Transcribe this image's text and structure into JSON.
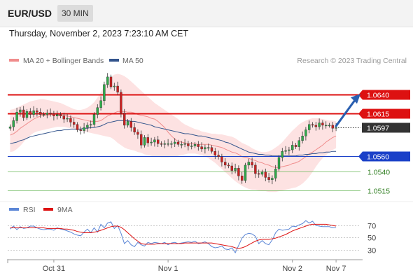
{
  "header": {
    "symbol": "EUR/USD",
    "timeframe": "30 MIN",
    "datetime": "Thursday, November 2, 2023 7:23:10 AM CET"
  },
  "legend": {
    "ma20_bb": "MA 20 + Bollinger Bands",
    "ma50": "MA 50",
    "credit": "Research © 2023 Trading Central",
    "rsi": "RSI",
    "ma9": "9MA"
  },
  "colors": {
    "ma20": "#f08c8c",
    "band_fill": "#fde2e2",
    "ma50": "#33548c",
    "resistance": "#dd1111",
    "support_key": "#1a40c8",
    "support_minor": "#6ab85a",
    "support_text": "#2e7d1f",
    "current": "#333333",
    "candle_up": "#2eab4a",
    "candle_down": "#cc2020",
    "arrow": "#2a5fb0",
    "rsi": "#5b86d6",
    "rsi_ma9": "#dd1111"
  },
  "chart_data": [
    {
      "type": "candlestick",
      "ylim": [
        1.0505,
        1.0672
      ],
      "x_ticks": [
        {
          "label": "Oct 31",
          "i": 13
        },
        {
          "label": "Nov 1",
          "i": 47
        },
        {
          "label": "Nov 2",
          "i": 84
        },
        {
          "label": "Nov 7",
          "i": 97
        }
      ],
      "levels": [
        {
          "value": 1.064,
          "label": "1.0640",
          "kind": "resistance"
        },
        {
          "value": 1.0615,
          "label": "1.0615",
          "kind": "resistance"
        },
        {
          "value": 1.0597,
          "label": "1.0597",
          "kind": "current"
        },
        {
          "value": 1.056,
          "label": "1.0560",
          "kind": "support_key"
        },
        {
          "value": 1.054,
          "label": "1.0540",
          "kind": "support_minor"
        },
        {
          "value": 1.0515,
          "label": "1.0515",
          "kind": "support_minor"
        }
      ],
      "close": [
        1.0598,
        1.0606,
        1.0617,
        1.062,
        1.061,
        1.0618,
        1.0614,
        1.0619,
        1.0617,
        1.0614,
        1.0614,
        1.0616,
        1.0615,
        1.0612,
        1.0614,
        1.0612,
        1.0608,
        1.0609,
        1.0604,
        1.0601,
        1.0594,
        1.0593,
        1.0597,
        1.06,
        1.0601,
        1.0614,
        1.0623,
        1.0632,
        1.0653,
        1.0663,
        1.065,
        1.0651,
        1.0643,
        1.0616,
        1.06,
        1.0605,
        1.0597,
        1.0591,
        1.0588,
        1.0574,
        1.0584,
        1.0577,
        1.0578,
        1.0581,
        1.0576,
        1.0575,
        1.0576,
        1.0576,
        1.0576,
        1.0578,
        1.0575,
        1.0575,
        1.0576,
        1.0573,
        1.0573,
        1.0575,
        1.0572,
        1.0569,
        1.0571,
        1.0571,
        1.0566,
        1.0561,
        1.0559,
        1.0552,
        1.0548,
        1.0547,
        1.0541,
        1.0544,
        1.0534,
        1.0528,
        1.0548,
        1.0552,
        1.0548,
        1.0537,
        1.0536,
        1.0539,
        1.0532,
        1.0529,
        1.0531,
        1.0543,
        1.0558,
        1.0566,
        1.0567,
        1.0568,
        1.0574,
        1.0572,
        1.058,
        1.0586,
        1.0594,
        1.0601,
        1.06,
        1.0598,
        1.0603,
        1.06,
        1.06,
        1.06,
        1.0596,
        1.0597
      ],
      "ma20": [
        1.0587,
        1.0589,
        1.0592,
        1.0596,
        1.0599,
        1.0602,
        1.0605,
        1.0608,
        1.061,
        1.0612,
        1.0613,
        1.0613,
        1.0614,
        1.0614,
        1.0614,
        1.0613,
        1.0613,
        1.0612,
        1.0611,
        1.061,
        1.0609,
        1.0608,
        1.0607,
        1.0606,
        1.0605,
        1.0605,
        1.0605,
        1.0606,
        1.0609,
        1.0612,
        1.0614,
        1.0616,
        1.0618,
        1.0618,
        1.0618,
        1.0617,
        1.0617,
        1.0616,
        1.0614,
        1.0613,
        1.0612,
        1.0611,
        1.0609,
        1.0608,
        1.0605,
        1.0601,
        1.0597,
        1.0591,
        1.0586,
        1.0582,
        1.0579,
        1.0578,
        1.0577,
        1.0576,
        1.0576,
        1.0576,
        1.0575,
        1.0575,
        1.0575,
        1.0575,
        1.0574,
        1.0573,
        1.0572,
        1.0571,
        1.0569,
        1.0567,
        1.0565,
        1.0564,
        1.0562,
        1.0559,
        1.0558,
        1.0557,
        1.0555,
        1.0554,
        1.0552,
        1.0551,
        1.0549,
        1.0548,
        1.0546,
        1.0545,
        1.0545,
        1.0546,
        1.0547,
        1.0548,
        1.055,
        1.0551,
        1.0553,
        1.0556,
        1.0559,
        1.0563,
        1.0565,
        1.0568,
        1.0571,
        1.0574,
        1.0578,
        1.0581,
        1.0584,
        1.0586
      ],
      "ma50": [
        1.0576,
        1.0577,
        1.0578,
        1.058,
        1.0581,
        1.0583,
        1.0585,
        1.0586,
        1.0587,
        1.0588,
        1.0589,
        1.059,
        1.0591,
        1.0592,
        1.0593,
        1.0593,
        1.0594,
        1.0594,
        1.0595,
        1.0595,
        1.0595,
        1.0595,
        1.0596,
        1.0596,
        1.0597,
        1.0597,
        1.0598,
        1.0599,
        1.0601,
        1.0603,
        1.0604,
        1.0605,
        1.0606,
        1.0606,
        1.0606,
        1.0606,
        1.0605,
        1.0605,
        1.0604,
        1.0603,
        1.0602,
        1.0601,
        1.06,
        1.0598,
        1.0597,
        1.0596,
        1.0595,
        1.0594,
        1.0593,
        1.0592,
        1.0591,
        1.059,
        1.0589,
        1.0589,
        1.0588,
        1.0587,
        1.0586,
        1.0586,
        1.0585,
        1.0584,
        1.0583,
        1.0582,
        1.0581,
        1.058,
        1.0578,
        1.0577,
        1.0575,
        1.0573,
        1.0571,
        1.0569,
        1.0567,
        1.0565,
        1.0564,
        1.0563,
        1.0562,
        1.0562,
        1.0561,
        1.0561,
        1.056,
        1.056,
        1.056,
        1.056,
        1.056,
        1.056,
        1.056,
        1.056,
        1.0561,
        1.0561,
        1.0562,
        1.0562,
        1.0563,
        1.0563,
        1.0564,
        1.0564,
        1.0565,
        1.0565,
        1.0566,
        1.0566
      ],
      "bb_upper": [
        1.062,
        1.0621,
        1.0623,
        1.0625,
        1.0627,
        1.0629,
        1.0631,
        1.0632,
        1.0633,
        1.0634,
        1.0634,
        1.0633,
        1.0632,
        1.0631,
        1.063,
        1.0629,
        1.0627,
        1.0625,
        1.0623,
        1.0621,
        1.062,
        1.062,
        1.0621,
        1.0623,
        1.0626,
        1.063,
        1.0636,
        1.0643,
        1.0651,
        1.0658,
        1.0663,
        1.0666,
        1.0667,
        1.0666,
        1.0664,
        1.0661,
        1.0657,
        1.0653,
        1.0649,
        1.0645,
        1.0641,
        1.0637,
        1.0633,
        1.0629,
        1.0626,
        1.0623,
        1.062,
        1.0617,
        1.0614,
        1.0611,
        1.0608,
        1.0604,
        1.0601,
        1.0599,
        1.0597,
        1.0595,
        1.0594,
        1.0592,
        1.0591,
        1.059,
        1.0589,
        1.0589,
        1.0588,
        1.0588,
        1.0587,
        1.0586,
        1.0585,
        1.0583,
        1.058,
        1.0577,
        1.0575,
        1.0573,
        1.057,
        1.0568,
        1.0566,
        1.0565,
        1.0565,
        1.0566,
        1.0568,
        1.0571,
        1.0574,
        1.0578,
        1.0583,
        1.0588,
        1.0593,
        1.0597,
        1.0601,
        1.0604,
        1.0606,
        1.0608,
        1.0609,
        1.0609,
        1.0609,
        1.0608,
        1.0607,
        1.0606,
        1.0606,
        1.0605
      ],
      "bb_lower": [
        1.0565,
        1.0566,
        1.0569,
        1.0573,
        1.0578,
        1.0583,
        1.0587,
        1.059,
        1.0592,
        1.0593,
        1.0594,
        1.0595,
        1.0596,
        1.0597,
        1.0598,
        1.0598,
        1.0598,
        1.0597,
        1.0596,
        1.0595,
        1.0594,
        1.0593,
        1.0592,
        1.0591,
        1.059,
        1.0589,
        1.0588,
        1.0587,
        1.0586,
        1.0585,
        1.0584,
        1.0581,
        1.0577,
        1.0574,
        1.0571,
        1.0569,
        1.0568,
        1.0567,
        1.0565,
        1.0564,
        1.0562,
        1.0561,
        1.056,
        1.0559,
        1.0559,
        1.0558,
        1.0558,
        1.0558,
        1.0559,
        1.0559,
        1.056,
        1.0561,
        1.0562,
        1.0563,
        1.0563,
        1.0563,
        1.0562,
        1.0561,
        1.0559,
        1.0557,
        1.0554,
        1.0551,
        1.0547,
        1.0543,
        1.0539,
        1.0535,
        1.0531,
        1.0527,
        1.0524,
        1.0521,
        1.0519,
        1.0517,
        1.0516,
        1.0516,
        1.0515,
        1.0514,
        1.0514,
        1.0513,
        1.0513,
        1.0513,
        1.0514,
        1.0515,
        1.0516,
        1.0517,
        1.0518,
        1.0519,
        1.0521,
        1.0524,
        1.0528,
        1.0533,
        1.0539,
        1.0546,
        1.0552,
        1.0557,
        1.0561,
        1.0565,
        1.0568,
        1.057
      ]
    },
    {
      "type": "line",
      "ylim": [
        18,
        84
      ],
      "y_ticks": [
        30,
        50,
        70
      ],
      "rsi": [
        64,
        69,
        63,
        68,
        65,
        66,
        69,
        69,
        66,
        64,
        63,
        64,
        64,
        62,
        66,
        64,
        63,
        61,
        59,
        56,
        54,
        53,
        59,
        64,
        58,
        66,
        59,
        72,
        66,
        74,
        76,
        65,
        70,
        57,
        40,
        45,
        38,
        35,
        42,
        38,
        36,
        42,
        40,
        42,
        41,
        40,
        42,
        38,
        41,
        42,
        40,
        41,
        42,
        43,
        42,
        44,
        40,
        41,
        43,
        40,
        35,
        33,
        34,
        36,
        31,
        30,
        33,
        25,
        37,
        49,
        55,
        57,
        56,
        52,
        40,
        45,
        40,
        38,
        46,
        58,
        64,
        62,
        63,
        64,
        69,
        68,
        71,
        73,
        78,
        74,
        77,
        70,
        69,
        68,
        68,
        68,
        66,
        66
      ],
      "ma9": [
        66,
        66,
        66,
        66,
        66,
        66,
        66,
        66,
        66,
        66,
        66,
        65,
        65,
        65,
        65,
        65,
        64,
        64,
        63,
        62,
        60,
        59,
        58,
        58,
        58,
        59,
        60,
        62,
        64,
        66,
        68,
        69,
        69,
        67,
        63,
        58,
        53,
        48,
        44,
        40,
        39,
        39,
        39,
        39,
        40,
        40,
        40,
        40,
        40,
        40,
        40,
        40,
        41,
        41,
        41,
        41,
        41,
        41,
        41,
        41,
        41,
        40,
        39,
        38,
        37,
        36,
        35,
        33,
        32,
        33,
        35,
        38,
        41,
        44,
        46,
        47,
        47,
        47,
        48,
        49,
        51,
        53,
        55,
        58,
        61,
        63,
        65,
        67,
        69,
        71,
        72,
        72,
        72,
        72,
        72,
        71,
        70,
        69
      ]
    }
  ]
}
